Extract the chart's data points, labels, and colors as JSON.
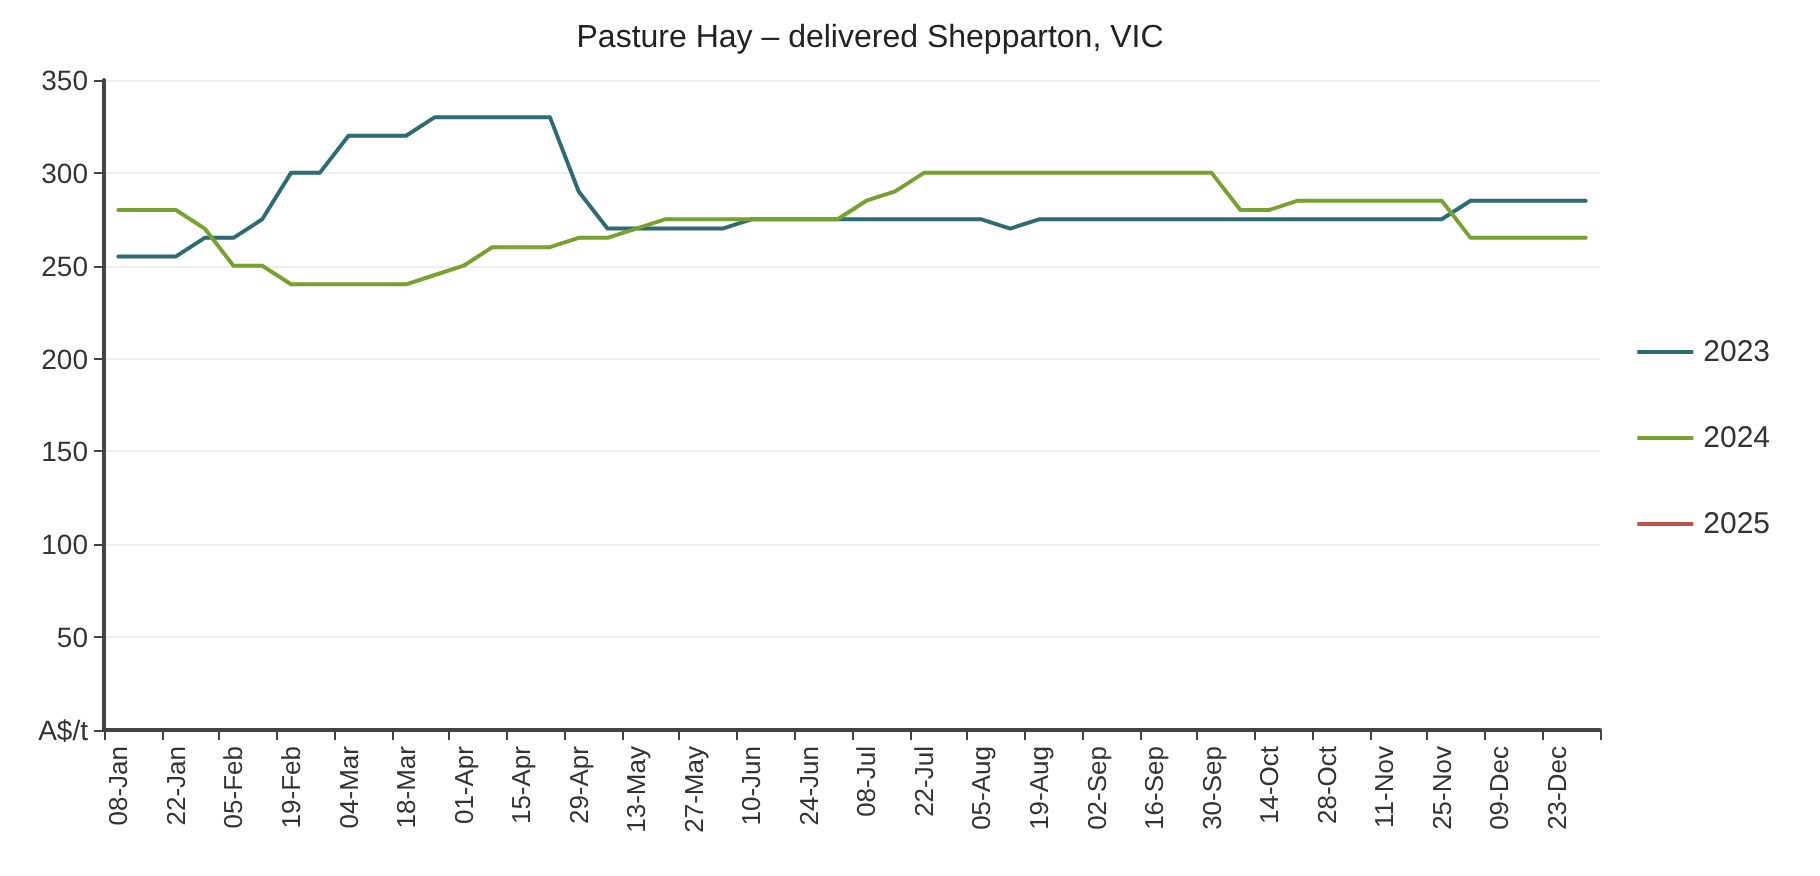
{
  "chart_data": {
    "type": "line",
    "title": "Pasture Hay – delivered Shepparton, VIC",
    "categories": [
      "08-Jan",
      null,
      "22-Jan",
      null,
      "05-Feb",
      null,
      "19-Feb",
      null,
      "04-Mar",
      null,
      "18-Mar",
      null,
      "01-Apr",
      null,
      "15-Apr",
      null,
      "29-Apr",
      null,
      "13-May",
      null,
      "27-May",
      null,
      "10-Jun",
      null,
      "24-Jun",
      null,
      "08-Jul",
      null,
      "22-Jul",
      null,
      "05-Aug",
      null,
      "19-Aug",
      null,
      "02-Sep",
      null,
      "16-Sep",
      null,
      "30-Sep",
      null,
      "14-Oct",
      null,
      "28-Oct",
      null,
      "11-Nov",
      null,
      "25-Nov",
      null,
      "09-Dec",
      null,
      "23-Dec",
      null
    ],
    "series": [
      {
        "name": "2023",
        "color": "#2e6b73",
        "values": [
          255,
          255,
          255,
          265,
          265,
          275,
          300,
          300,
          320,
          320,
          320,
          330,
          330,
          330,
          330,
          330,
          290,
          270,
          270,
          270,
          270,
          270,
          275,
          275,
          275,
          275,
          275,
          275,
          275,
          275,
          275,
          270,
          275,
          275,
          275,
          275,
          275,
          275,
          275,
          275,
          275,
          275,
          275,
          275,
          275,
          275,
          275,
          285,
          285,
          285,
          285,
          285
        ]
      },
      {
        "name": "2024",
        "color": "#77a22f",
        "values": [
          280,
          280,
          280,
          270,
          250,
          250,
          240,
          240,
          240,
          240,
          240,
          245,
          250,
          260,
          260,
          260,
          265,
          265,
          270,
          275,
          275,
          275,
          275,
          275,
          275,
          275,
          285,
          290,
          300,
          300,
          300,
          300,
          300,
          300,
          300,
          300,
          300,
          300,
          300,
          280,
          280,
          285,
          285,
          285,
          285,
          285,
          285,
          265,
          265,
          265,
          265,
          265
        ]
      },
      {
        "name": "2025",
        "color": "#c0504d",
        "values": [
          null,
          null,
          null,
          null,
          null,
          null,
          null,
          null,
          null,
          null,
          null,
          null,
          null,
          null,
          null,
          null,
          null,
          null,
          null,
          null,
          null,
          null,
          null,
          null,
          null,
          null,
          null,
          null,
          null,
          null,
          null,
          null,
          null,
          null,
          null,
          null,
          null,
          null,
          null,
          null,
          null,
          null,
          null,
          null,
          null,
          null,
          null,
          null,
          null,
          null,
          null,
          null
        ]
      }
    ],
    "ylim": [
      0,
      350
    ],
    "yticks": [
      {
        "value": 0,
        "label": "A$/t"
      },
      50,
      100,
      150,
      200,
      250,
      300,
      350
    ],
    "grid": "y",
    "legend": "right",
    "marker": "none",
    "line_style": "solid"
  }
}
